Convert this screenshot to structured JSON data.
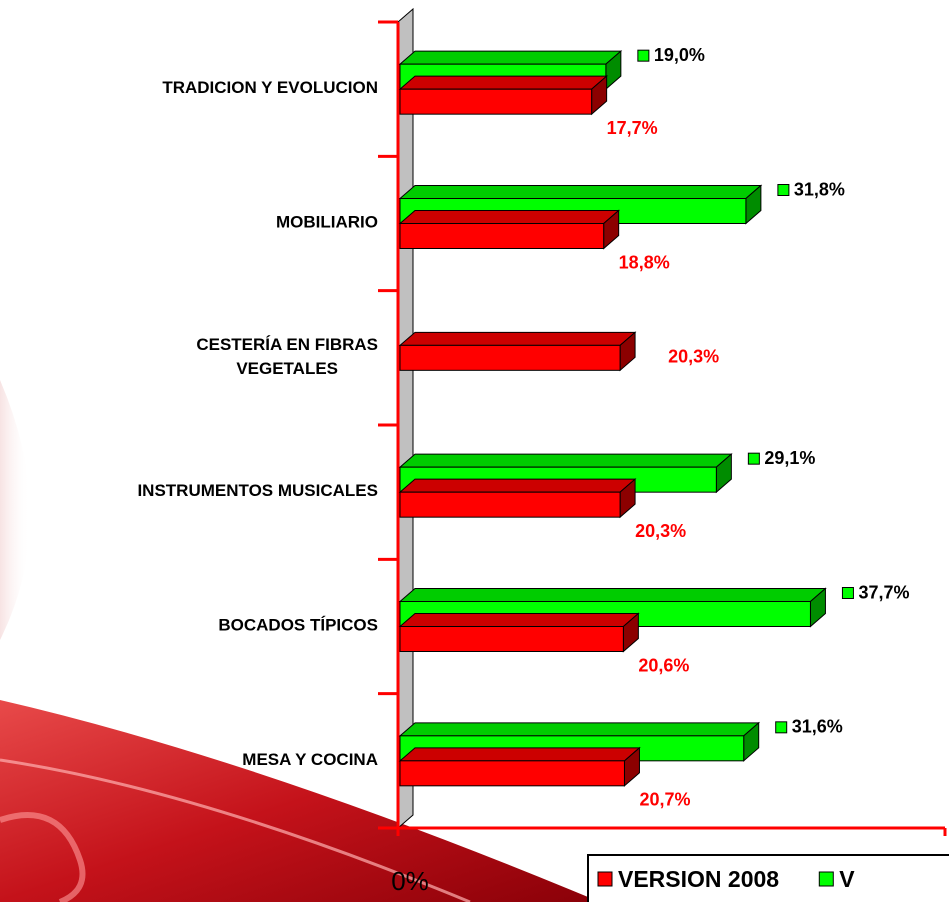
{
  "chart_data": {
    "type": "bar3d",
    "orientation": "horizontal",
    "categories": [
      "TRADICION Y EVOLUCION",
      "MOBILIARIO",
      "CESTERÍA EN FIBRAS VEGETALES",
      "INSTRUMENTOS MUSICALES",
      "BOCADOS TÍPICOS",
      "MESA Y COCINA"
    ],
    "series": [
      {
        "name": "V",
        "color": "#00ff00",
        "values": [
          19.0,
          31.8,
          null,
          29.1,
          37.7,
          31.6
        ],
        "value_labels": [
          "19,0%",
          "31,8%",
          null,
          "29,1%",
          "37,7%",
          "31,6%"
        ]
      },
      {
        "name": "VERSION 2008",
        "color": "#ff0000",
        "values": [
          17.7,
          18.8,
          20.3,
          20.3,
          20.6,
          20.7
        ],
        "value_labels": [
          "17,7%",
          "18,8%",
          "20,3%",
          "20,3%",
          "20,6%",
          "20,7%"
        ]
      }
    ],
    "xlim": [
      0,
      50
    ],
    "xticks": [
      {
        "value": 0,
        "label": "0%"
      }
    ]
  }
}
